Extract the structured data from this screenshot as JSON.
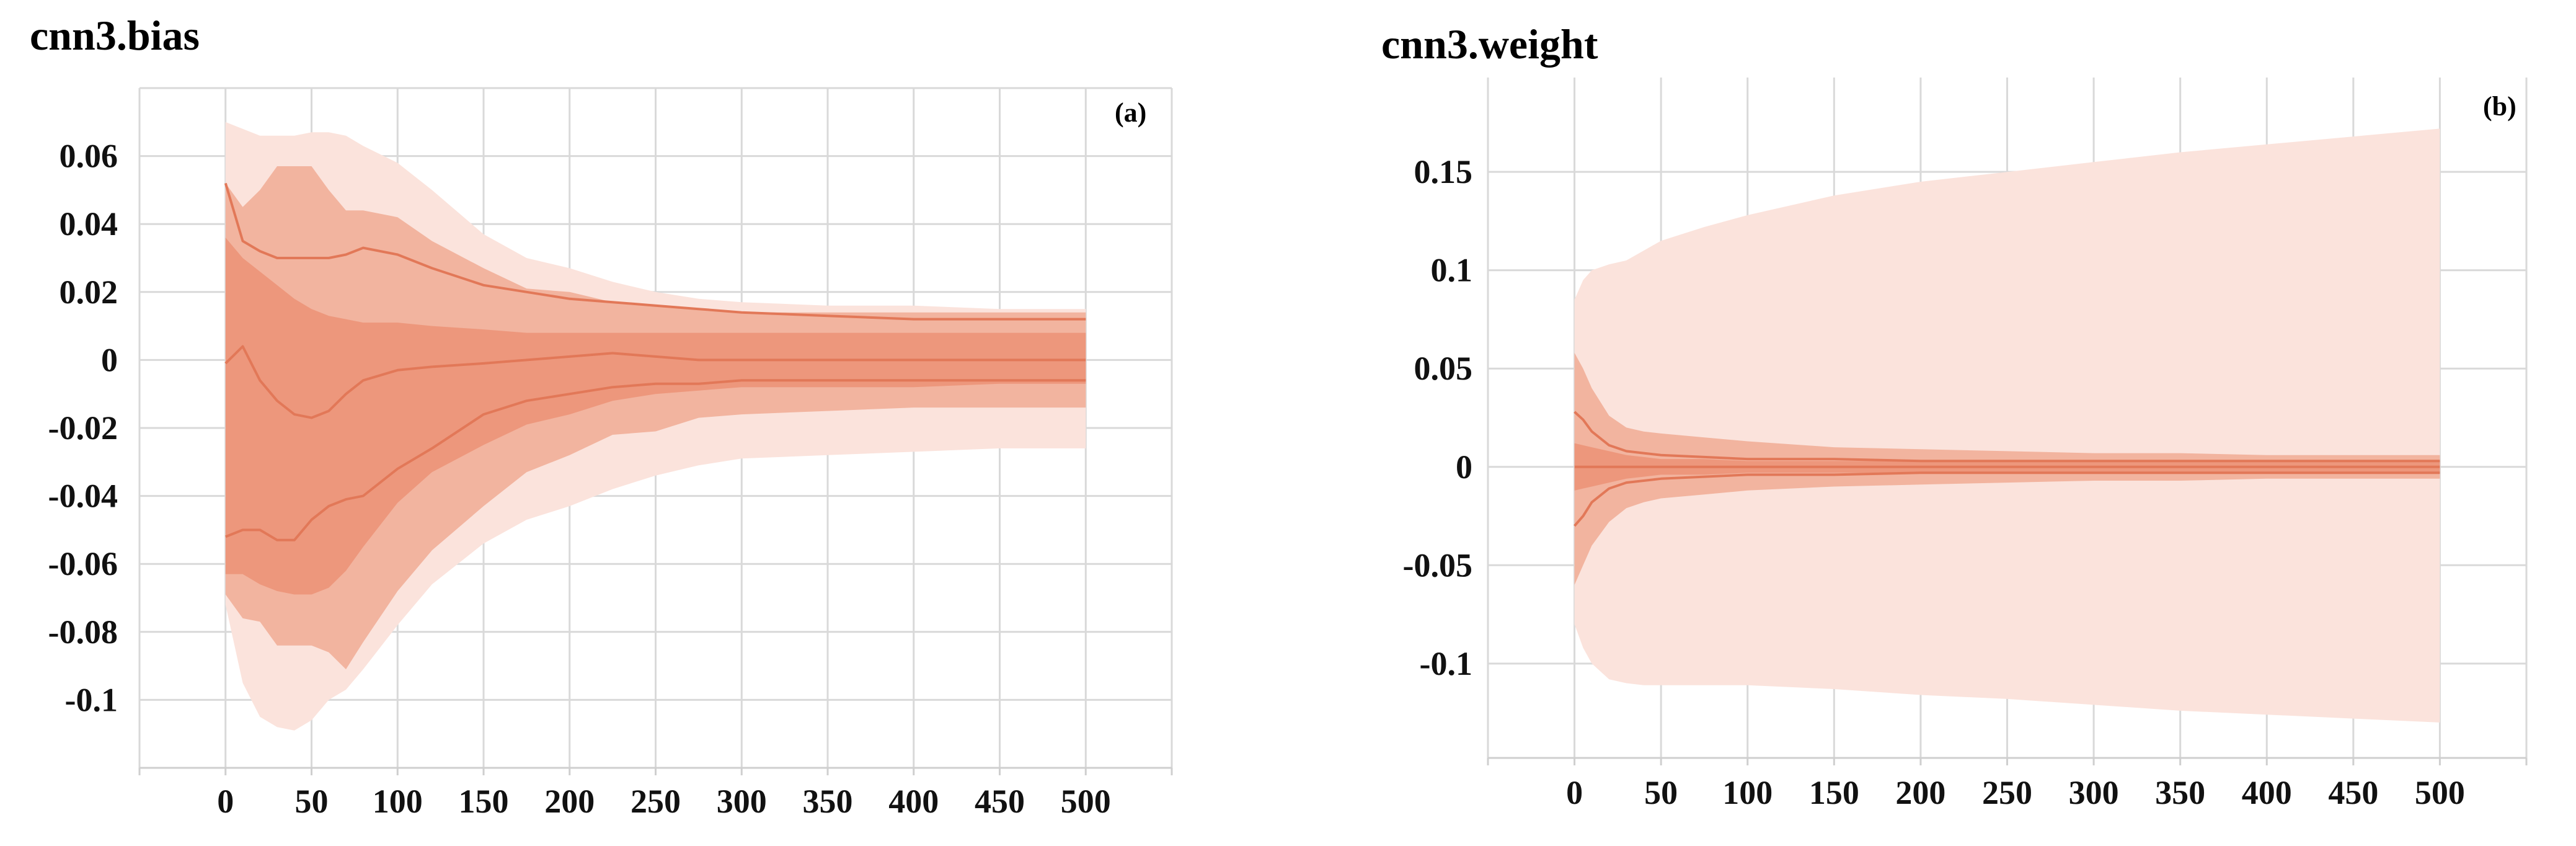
{
  "colors": {
    "outer": "#fbe3dc",
    "middle": "#f2b49f",
    "inner": "#ec9275",
    "line": "#e27858",
    "grid": "#d9d9d9"
  },
  "chart_data": [
    {
      "type": "area",
      "title": "cnn3.bias",
      "panel_label": "(a)",
      "x": [
        0,
        10,
        20,
        30,
        40,
        50,
        60,
        70,
        80,
        100,
        120,
        150,
        175,
        200,
        225,
        250,
        275,
        300,
        350,
        400,
        450,
        500
      ],
      "xticks": [
        0,
        50,
        100,
        150,
        200,
        250,
        300,
        350,
        400,
        450,
        500
      ],
      "xtick_labels": [
        "0",
        "50",
        "100",
        "150",
        "200",
        "250",
        "300",
        "350",
        "400",
        "450",
        "500"
      ],
      "xlim": [
        -50,
        550
      ],
      "yticks": [
        -0.1,
        -0.08,
        -0.06,
        -0.04,
        -0.02,
        0,
        0.02,
        0.04,
        0.06
      ],
      "ytick_labels": [
        "-0.1",
        "-0.08",
        "-0.06",
        "-0.04",
        "-0.02",
        "0",
        "0.02",
        "0.04",
        "0.06"
      ],
      "ylim": [
        -0.12,
        0.08
      ],
      "series": [
        {
          "name": "outer_upper",
          "values": [
            0.07,
            0.068,
            0.066,
            0.066,
            0.066,
            0.067,
            0.067,
            0.066,
            0.063,
            0.058,
            0.05,
            0.037,
            0.03,
            0.027,
            0.023,
            0.02,
            0.018,
            0.017,
            0.016,
            0.016,
            0.015,
            0.015
          ]
        },
        {
          "name": "outer_lower",
          "values": [
            -0.072,
            -0.095,
            -0.105,
            -0.108,
            -0.109,
            -0.106,
            -0.1,
            -0.097,
            -0.091,
            -0.078,
            -0.066,
            -0.054,
            -0.047,
            -0.043,
            -0.038,
            -0.034,
            -0.031,
            -0.029,
            -0.028,
            -0.027,
            -0.026,
            -0.026
          ]
        },
        {
          "name": "middle_upper",
          "values": [
            0.052,
            0.045,
            0.05,
            0.057,
            0.057,
            0.057,
            0.05,
            0.044,
            0.044,
            0.042,
            0.035,
            0.027,
            0.021,
            0.02,
            0.017,
            0.016,
            0.015,
            0.014,
            0.014,
            0.014,
            0.014,
            0.014
          ]
        },
        {
          "name": "middle_lower",
          "values": [
            -0.069,
            -0.076,
            -0.077,
            -0.084,
            -0.084,
            -0.084,
            -0.086,
            -0.091,
            -0.083,
            -0.068,
            -0.056,
            -0.043,
            -0.033,
            -0.028,
            -0.022,
            -0.021,
            -0.017,
            -0.016,
            -0.015,
            -0.014,
            -0.014,
            -0.014
          ]
        },
        {
          "name": "inner_upper",
          "values": [
            0.036,
            0.03,
            0.026,
            0.022,
            0.018,
            0.015,
            0.013,
            0.012,
            0.011,
            0.011,
            0.01,
            0.009,
            0.008,
            0.008,
            0.008,
            0.008,
            0.008,
            0.008,
            0.008,
            0.008,
            0.008,
            0.008
          ]
        },
        {
          "name": "inner_lower",
          "values": [
            -0.063,
            -0.063,
            -0.066,
            -0.068,
            -0.069,
            -0.069,
            -0.067,
            -0.062,
            -0.055,
            -0.042,
            -0.033,
            -0.025,
            -0.019,
            -0.016,
            -0.012,
            -0.01,
            -0.009,
            -0.008,
            -0.008,
            -0.008,
            -0.007,
            -0.007
          ]
        },
        {
          "name": "line_upper",
          "values": [
            0.052,
            0.035,
            0.032,
            0.03,
            0.03,
            0.03,
            0.03,
            0.031,
            0.033,
            0.031,
            0.027,
            0.022,
            0.02,
            0.018,
            0.017,
            0.016,
            0.015,
            0.014,
            0.013,
            0.012,
            0.012,
            0.012
          ]
        },
        {
          "name": "line_median",
          "values": [
            -0.001,
            0.004,
            -0.006,
            -0.012,
            -0.016,
            -0.017,
            -0.015,
            -0.01,
            -0.006,
            -0.003,
            -0.002,
            -0.001,
            0.0,
            0.001,
            0.002,
            0.001,
            0.0,
            0.0,
            0.0,
            0.0,
            0.0,
            0.0
          ]
        },
        {
          "name": "line_lower",
          "values": [
            -0.052,
            -0.05,
            -0.05,
            -0.053,
            -0.053,
            -0.047,
            -0.043,
            -0.041,
            -0.04,
            -0.032,
            -0.026,
            -0.016,
            -0.012,
            -0.01,
            -0.008,
            -0.007,
            -0.007,
            -0.006,
            -0.006,
            -0.006,
            -0.006,
            -0.006
          ]
        }
      ]
    },
    {
      "type": "area",
      "title": "cnn3.weight",
      "panel_label": "(b)",
      "x": [
        0,
        5,
        10,
        20,
        30,
        40,
        50,
        75,
        100,
        150,
        200,
        250,
        300,
        350,
        400,
        450,
        500
      ],
      "xticks": [
        0,
        50,
        100,
        150,
        200,
        250,
        300,
        350,
        400,
        450,
        500
      ],
      "xtick_labels": [
        "0",
        "50",
        "100",
        "150",
        "200",
        "250",
        "300",
        "350",
        "400",
        "450",
        "500"
      ],
      "xlim": [
        -50,
        550
      ],
      "yticks": [
        -0.1,
        -0.05,
        0,
        0.05,
        0.1,
        0.15
      ],
      "ytick_labels": [
        "-0.1",
        "-0.05",
        "0",
        "0.05",
        "0.1",
        "0.15"
      ],
      "ylim": [
        -0.148,
        0.198
      ],
      "series": [
        {
          "name": "outer_upper",
          "values": [
            0.085,
            0.095,
            0.1,
            0.103,
            0.105,
            0.11,
            0.115,
            0.122,
            0.128,
            0.138,
            0.145,
            0.15,
            0.155,
            0.16,
            0.164,
            0.168,
            0.172
          ]
        },
        {
          "name": "outer_lower",
          "values": [
            -0.08,
            -0.092,
            -0.1,
            -0.108,
            -0.11,
            -0.111,
            -0.111,
            -0.111,
            -0.111,
            -0.113,
            -0.116,
            -0.118,
            -0.121,
            -0.124,
            -0.126,
            -0.128,
            -0.13
          ]
        },
        {
          "name": "middle_upper",
          "values": [
            0.058,
            0.05,
            0.04,
            0.026,
            0.02,
            0.018,
            0.017,
            0.015,
            0.013,
            0.01,
            0.009,
            0.008,
            0.007,
            0.007,
            0.006,
            0.006,
            0.006
          ]
        },
        {
          "name": "middle_lower",
          "values": [
            -0.06,
            -0.05,
            -0.04,
            -0.028,
            -0.021,
            -0.018,
            -0.016,
            -0.014,
            -0.012,
            -0.01,
            -0.009,
            -0.008,
            -0.007,
            -0.007,
            -0.006,
            -0.006,
            -0.006
          ]
        },
        {
          "name": "inner_upper",
          "values": [
            0.012,
            0.011,
            0.01,
            0.008,
            0.006,
            0.005,
            0.004,
            0.004,
            0.003,
            0.003,
            0.003,
            0.003,
            0.003,
            0.003,
            0.003,
            0.003,
            0.003
          ]
        },
        {
          "name": "inner_lower",
          "values": [
            -0.012,
            -0.011,
            -0.01,
            -0.008,
            -0.006,
            -0.005,
            -0.004,
            -0.004,
            -0.003,
            -0.003,
            -0.003,
            -0.003,
            -0.003,
            -0.003,
            -0.003,
            -0.003,
            -0.003
          ]
        },
        {
          "name": "line_upper",
          "values": [
            0.028,
            0.024,
            0.018,
            0.011,
            0.008,
            0.007,
            0.006,
            0.005,
            0.004,
            0.004,
            0.003,
            0.003,
            0.003,
            0.003,
            0.003,
            0.003,
            0.003
          ]
        },
        {
          "name": "line_median",
          "values": [
            0.0,
            0.0,
            0.0,
            0.0,
            0.0,
            0.0,
            0.0,
            0.0,
            0.0,
            0.0,
            0.0,
            0.0,
            0.0,
            0.0,
            0.0,
            0.0,
            0.0
          ]
        },
        {
          "name": "line_lower",
          "values": [
            -0.03,
            -0.025,
            -0.018,
            -0.011,
            -0.008,
            -0.007,
            -0.006,
            -0.005,
            -0.004,
            -0.004,
            -0.003,
            -0.003,
            -0.003,
            -0.003,
            -0.003,
            -0.003,
            -0.003
          ]
        }
      ]
    }
  ]
}
